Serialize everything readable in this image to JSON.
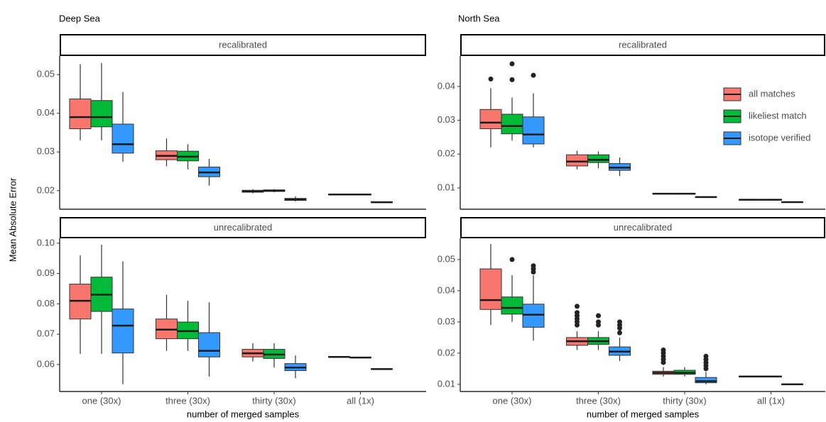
{
  "chart_data": [
    {
      "type": "box",
      "title": "Deep Sea",
      "strip": "recalibrated",
      "ylabel": "Mean Absolute Error",
      "ylim": [
        0.0152,
        0.0548
      ],
      "yticks": [
        0.02,
        0.03,
        0.04,
        0.05
      ],
      "series": [
        {
          "color": "#f8766d",
          "values": [
            {
              "min": 0.033,
              "q1": 0.036,
              "median": 0.039,
              "q3": 0.0437,
              "max": 0.0527
            },
            {
              "min": 0.0263,
              "q1": 0.028,
              "median": 0.029,
              "q3": 0.0303,
              "max": 0.0335
            },
            {
              "min": 0.0193,
              "q1": 0.0196,
              "median": 0.0198,
              "q3": 0.0201,
              "max": 0.0204
            },
            {
              "min": 0.0189,
              "q1": 0.0189,
              "median": 0.019,
              "q3": 0.0191,
              "max": 0.0191
            }
          ]
        },
        {
          "color": "#00ba38",
          "values": [
            {
              "min": 0.033,
              "q1": 0.0365,
              "median": 0.039,
              "q3": 0.0433,
              "max": 0.053
            },
            {
              "min": 0.0255,
              "q1": 0.0277,
              "median": 0.0288,
              "q3": 0.0302,
              "max": 0.032
            },
            {
              "min": 0.0196,
              "q1": 0.0198,
              "median": 0.02,
              "q3": 0.0202,
              "max": 0.0204
            },
            {
              "min": 0.0189,
              "q1": 0.0189,
              "median": 0.019,
              "q3": 0.0191,
              "max": 0.0191
            }
          ]
        },
        {
          "color": "#3399ff",
          "values": [
            {
              "min": 0.0275,
              "q1": 0.0297,
              "median": 0.032,
              "q3": 0.0372,
              "max": 0.0455
            },
            {
              "min": 0.0213,
              "q1": 0.0236,
              "median": 0.0247,
              "q3": 0.0261,
              "max": 0.0282
            },
            {
              "min": 0.0172,
              "q1": 0.0175,
              "median": 0.0177,
              "q3": 0.018,
              "max": 0.0185
            },
            {
              "min": 0.0169,
              "q1": 0.0169,
              "median": 0.017,
              "q3": 0.0171,
              "max": 0.0171
            }
          ]
        }
      ]
    },
    {
      "type": "box",
      "title": "North Sea",
      "strip": "recalibrated",
      "legend": "upper right",
      "ylim": [
        0.0037,
        0.049
      ],
      "yticks": [
        0.01,
        0.02,
        0.03,
        0.04
      ],
      "series": [
        {
          "name": "all matches",
          "color": "#f8766d",
          "values": [
            {
              "min": 0.022,
              "q1": 0.0275,
              "median": 0.0293,
              "q3": 0.0332,
              "max": 0.0395,
              "outliers": [
                0.0422
              ]
            },
            {
              "min": 0.0155,
              "q1": 0.0165,
              "median": 0.0178,
              "q3": 0.0198,
              "max": 0.021
            },
            {
              "min": 0.0082,
              "q1": 0.0082,
              "median": 0.0083,
              "q3": 0.0084,
              "max": 0.0084
            },
            {
              "min": 0.0064,
              "q1": 0.0064,
              "median": 0.0065,
              "q3": 0.0066,
              "max": 0.0066
            }
          ]
        },
        {
          "name": "likeliest match",
          "color": "#00ba38",
          "values": [
            {
              "min": 0.024,
              "q1": 0.026,
              "median": 0.0283,
              "q3": 0.0318,
              "max": 0.0367,
              "outliers": [
                0.0467,
                0.042
              ]
            },
            {
              "min": 0.0158,
              "q1": 0.0175,
              "median": 0.0183,
              "q3": 0.0198,
              "max": 0.0208
            },
            {
              "min": 0.0082,
              "q1": 0.0082,
              "median": 0.0083,
              "q3": 0.0084,
              "max": 0.0084
            },
            {
              "min": 0.0064,
              "q1": 0.0064,
              "median": 0.0065,
              "q3": 0.0066,
              "max": 0.0066
            }
          ]
        },
        {
          "name": "isotope verified",
          "color": "#3399ff",
          "values": [
            {
              "min": 0.022,
              "q1": 0.023,
              "median": 0.0258,
              "q3": 0.031,
              "max": 0.038,
              "outliers": [
                0.0433
              ]
            },
            {
              "min": 0.0135,
              "q1": 0.0152,
              "median": 0.016,
              "q3": 0.0172,
              "max": 0.019
            },
            {
              "min": 0.0072,
              "q1": 0.0072,
              "median": 0.0073,
              "q3": 0.0074,
              "max": 0.0074
            },
            {
              "min": 0.0057,
              "q1": 0.0057,
              "median": 0.0058,
              "q3": 0.0059,
              "max": 0.0059
            }
          ]
        }
      ]
    },
    {
      "type": "box",
      "strip": "unrecalibrated",
      "xlabel": "number of merged samples",
      "categories": [
        "one (30x)",
        "three (30x)",
        "thirty (30x)",
        "all (1x)"
      ],
      "ylim": [
        0.0511,
        0.1016
      ],
      "yticks": [
        0.06,
        0.07,
        0.08,
        0.09,
        {
          "value": 0.1,
          "label": "0.10"
        }
      ],
      "series": [
        {
          "color": "#f8766d",
          "values": [
            {
              "min": 0.0635,
              "q1": 0.075,
              "median": 0.081,
              "q3": 0.0865,
              "max": 0.096
            },
            {
              "min": 0.0645,
              "q1": 0.0685,
              "median": 0.0715,
              "q3": 0.075,
              "max": 0.083
            },
            {
              "min": 0.061,
              "q1": 0.0625,
              "median": 0.0637,
              "q3": 0.065,
              "max": 0.067
            },
            {
              "min": 0.0624,
              "q1": 0.0624,
              "median": 0.0625,
              "q3": 0.0626,
              "max": 0.0626
            }
          ]
        },
        {
          "color": "#00ba38",
          "values": [
            {
              "min": 0.0635,
              "q1": 0.0775,
              "median": 0.083,
              "q3": 0.0888,
              "max": 0.0995
            },
            {
              "min": 0.0645,
              "q1": 0.0685,
              "median": 0.071,
              "q3": 0.074,
              "max": 0.081
            },
            {
              "min": 0.059,
              "q1": 0.062,
              "median": 0.0633,
              "q3": 0.065,
              "max": 0.067
            },
            {
              "min": 0.0622,
              "q1": 0.0622,
              "median": 0.0623,
              "q3": 0.0624,
              "max": 0.0624
            }
          ]
        },
        {
          "color": "#3399ff",
          "values": [
            {
              "min": 0.0535,
              "q1": 0.0638,
              "median": 0.0728,
              "q3": 0.0783,
              "max": 0.094
            },
            {
              "min": 0.056,
              "q1": 0.0625,
              "median": 0.0645,
              "q3": 0.0705,
              "max": 0.0805
            },
            {
              "min": 0.0555,
              "q1": 0.058,
              "median": 0.059,
              "q3": 0.0603,
              "max": 0.063
            },
            {
              "min": 0.0584,
              "q1": 0.0584,
              "median": 0.0585,
              "q3": 0.0586,
              "max": 0.0586
            }
          ]
        }
      ]
    },
    {
      "type": "box",
      "strip": "unrecalibrated",
      "xlabel": "number of merged samples",
      "categories": [
        "one (30x)",
        "three (30x)",
        "thirty (30x)",
        "all (1x)"
      ],
      "ylim": [
        0.0077,
        0.0568
      ],
      "yticks": [
        0.01,
        0.02,
        0.03,
        0.04,
        0.05
      ],
      "series": [
        {
          "color": "#f8766d",
          "values": [
            {
              "min": 0.029,
              "q1": 0.034,
              "median": 0.037,
              "q3": 0.047,
              "max": 0.055
            },
            {
              "min": 0.021,
              "q1": 0.0225,
              "median": 0.0238,
              "q3": 0.025,
              "max": 0.027,
              "outliers": [
                0.029,
                0.03,
                0.031,
                0.032,
                0.033,
                0.035
              ]
            },
            {
              "min": 0.0125,
              "q1": 0.0132,
              "median": 0.0137,
              "q3": 0.0142,
              "max": 0.0155,
              "outliers": [
                0.017,
                0.018,
                0.019,
                0.02,
                0.021
              ]
            },
            {
              "min": 0.0124,
              "q1": 0.0124,
              "median": 0.0125,
              "q3": 0.0126,
              "max": 0.0126
            }
          ]
        },
        {
          "color": "#00ba38",
          "values": [
            {
              "min": 0.03,
              "q1": 0.0325,
              "median": 0.0345,
              "q3": 0.038,
              "max": 0.045,
              "outliers": [
                0.05
              ]
            },
            {
              "min": 0.021,
              "q1": 0.0228,
              "median": 0.0238,
              "q3": 0.025,
              "max": 0.027,
              "outliers": [
                0.029,
                0.03,
                0.032
              ]
            },
            {
              "min": 0.0125,
              "q1": 0.0132,
              "median": 0.0137,
              "q3": 0.0145,
              "max": 0.0155
            },
            {
              "min": 0.0124,
              "q1": 0.0124,
              "median": 0.0125,
              "q3": 0.0126,
              "max": 0.0126
            }
          ]
        },
        {
          "color": "#3399ff",
          "values": [
            {
              "min": 0.024,
              "q1": 0.0283,
              "median": 0.0323,
              "q3": 0.0357,
              "max": 0.045,
              "outliers": [
                0.048,
                0.047,
                0.046
              ]
            },
            {
              "min": 0.0175,
              "q1": 0.0193,
              "median": 0.0205,
              "q3": 0.022,
              "max": 0.025,
              "outliers": [
                0.0265,
                0.028,
                0.029,
                0.03
              ]
            },
            {
              "min": 0.01,
              "q1": 0.0105,
              "median": 0.011,
              "q3": 0.0122,
              "max": 0.014,
              "outliers": [
                0.015,
                0.016,
                0.017,
                0.018,
                0.019
              ]
            },
            {
              "min": 0.0099,
              "q1": 0.0099,
              "median": 0.01,
              "q3": 0.0101,
              "max": 0.0101
            }
          ]
        }
      ]
    }
  ]
}
